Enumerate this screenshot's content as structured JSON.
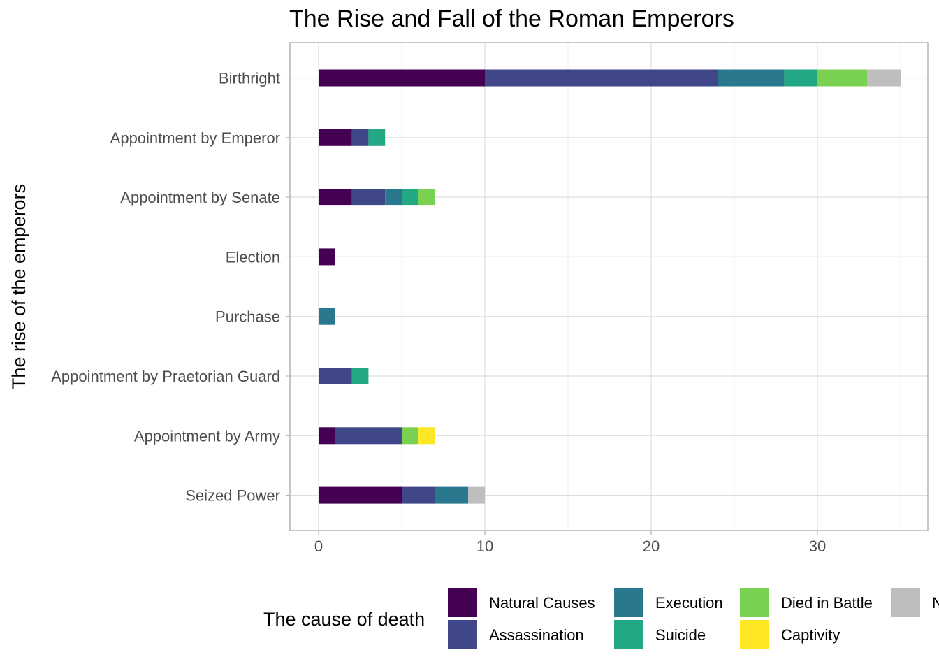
{
  "chart_data": {
    "type": "bar",
    "orientation": "horizontal",
    "stacked": true,
    "title": "The Rise and Fall of the Roman Emperors",
    "xlabel": "",
    "ylabel": "The rise of the emperors",
    "legend_title": "The cause of death",
    "legend_position": "bottom",
    "grid": true,
    "xlim": [
      0,
      36
    ],
    "x_ticks": [
      0,
      10,
      20,
      30
    ],
    "categories": [
      "Birthright",
      "Appointment by Emperor",
      "Appointment by Senate",
      "Election",
      "Purchase",
      "Appointment by Praetorian Guard",
      "Appointment by Army",
      "Seized Power"
    ],
    "series": [
      {
        "name": "Natural Causes",
        "color": "#440154",
        "values": [
          10,
          2,
          2,
          1,
          0,
          0,
          1,
          5
        ]
      },
      {
        "name": "Assassination",
        "color": "#3F4788",
        "values": [
          14,
          1,
          2,
          0,
          0,
          2,
          4,
          2
        ]
      },
      {
        "name": "Execution",
        "color": "#2A788E",
        "values": [
          4,
          0,
          1,
          0,
          1,
          0,
          0,
          2
        ]
      },
      {
        "name": "Suicide",
        "color": "#22A884",
        "values": [
          2,
          1,
          1,
          0,
          0,
          1,
          0,
          0
        ]
      },
      {
        "name": "Died in Battle",
        "color": "#7AD151",
        "values": [
          3,
          0,
          1,
          0,
          0,
          0,
          1,
          0
        ]
      },
      {
        "name": "Captivity",
        "color": "#FDE725",
        "values": [
          0,
          0,
          0,
          0,
          0,
          0,
          1,
          0
        ]
      },
      {
        "name": "N",
        "color": "#BEBEBE",
        "values": [
          2,
          0,
          0,
          0,
          0,
          0,
          0,
          1
        ]
      }
    ]
  }
}
